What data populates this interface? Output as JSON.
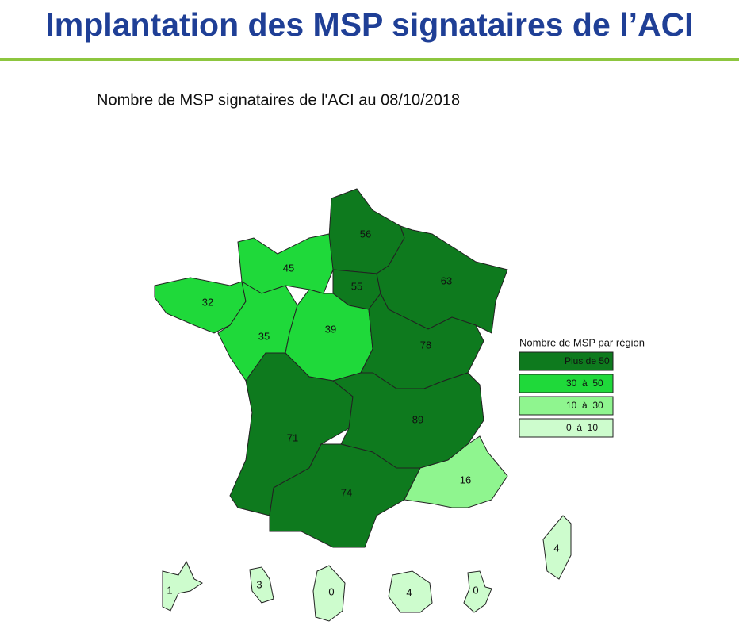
{
  "title": "Implantation des MSP signataires de l’ACI",
  "subtitle": "Nombre de MSP signataires de l'ACI au 08/10/2018",
  "legend": {
    "title": "Nombre de MSP par région",
    "classes": [
      {
        "label": "Plus de 50",
        "color": "#0e7a1e"
      },
      {
        "label": "30  à  50",
        "color": "#1fd93a"
      },
      {
        "label": "10  à  30",
        "color": "#8ff58f"
      },
      {
        "label": "0  à  10",
        "color": "#cdfccd"
      }
    ]
  },
  "regions": [
    {
      "value": 56,
      "color": "#0e7a1e"
    },
    {
      "value": 45,
      "color": "#1fd93a"
    },
    {
      "value": 55,
      "color": "#0e7a1e"
    },
    {
      "value": 63,
      "color": "#0e7a1e"
    },
    {
      "value": 32,
      "color": "#1fd93a"
    },
    {
      "value": 35,
      "color": "#1fd93a"
    },
    {
      "value": 39,
      "color": "#1fd93a"
    },
    {
      "value": 78,
      "color": "#0e7a1e"
    },
    {
      "value": 71,
      "color": "#0e7a1e"
    },
    {
      "value": 89,
      "color": "#0e7a1e"
    },
    {
      "value": 74,
      "color": "#0e7a1e"
    },
    {
      "value": 16,
      "color": "#8ff58f"
    },
    {
      "value": 4,
      "color": "#cdfccd"
    },
    {
      "value": 1,
      "color": "#cdfccd"
    },
    {
      "value": 3,
      "color": "#cdfccd"
    },
    {
      "value": 0,
      "color": "#cdfccd"
    },
    {
      "value": 4,
      "color": "#cdfccd"
    },
    {
      "value": 0,
      "color": "#cdfccd"
    }
  ]
}
